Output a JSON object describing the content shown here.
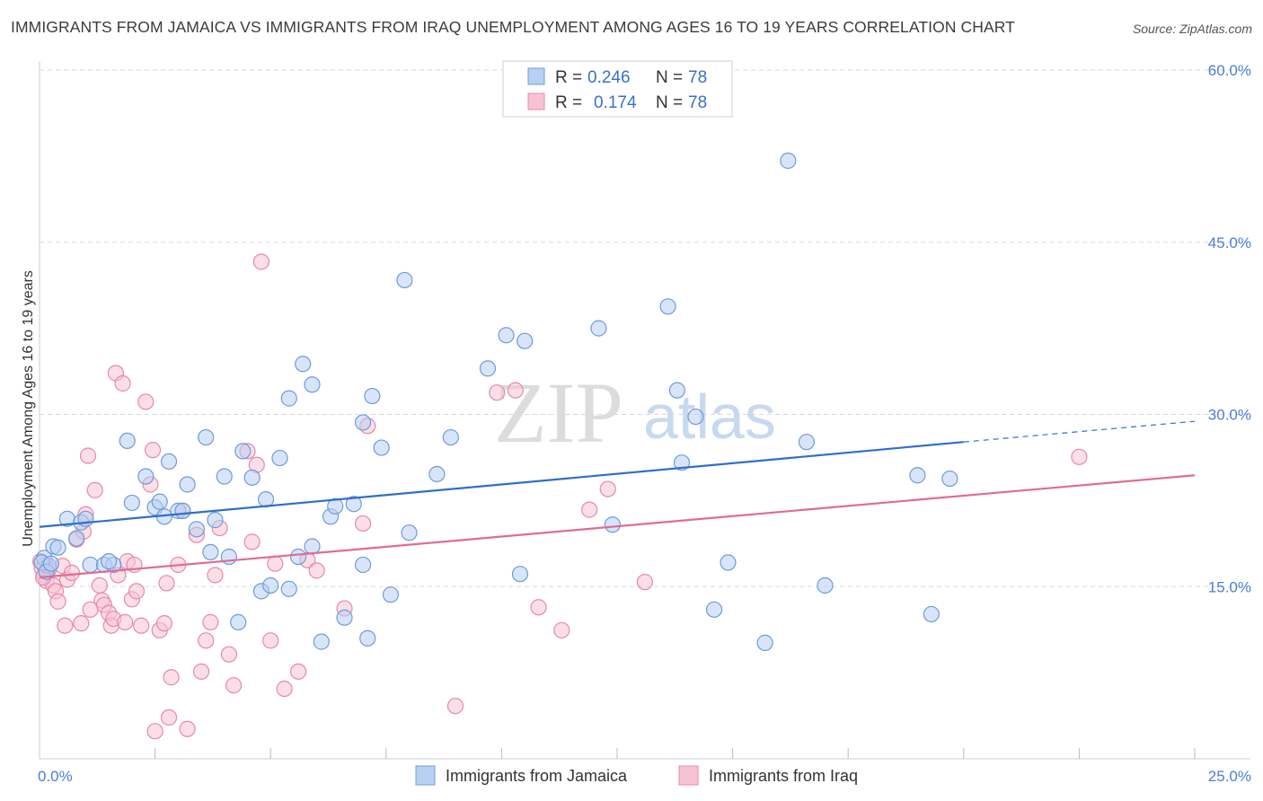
{
  "header": {
    "title": "IMMIGRANTS FROM JAMAICA VS IMMIGRANTS FROM IRAQ UNEMPLOYMENT AMONG AGES 16 TO 19 YEARS CORRELATION CHART",
    "source": "Source: ZipAtlas.com"
  },
  "watermark": {
    "zip": "ZIP",
    "atlas": "atlas"
  },
  "legend": {
    "r_label": "R =",
    "n_label": "N =",
    "series": [
      {
        "r": "0.246",
        "n": "78"
      },
      {
        "r": "0.174",
        "n": "78"
      }
    ]
  },
  "colors": {
    "jamaica_fill": "#b8d0f2",
    "jamaica_stroke": "#6f9bd8",
    "jamaica_line": "#2e6fcc",
    "iraq_fill": "#f7c3d4",
    "iraq_stroke": "#e58aa8",
    "iraq_line": "#e06b96",
    "grid": "#d9d9d9",
    "tick_text": "#4a7fd1"
  },
  "chart_data": {
    "type": "scatter",
    "title": "IMMIGRANTS FROM JAMAICA VS IMMIGRANTS FROM IRAQ UNEMPLOYMENT AMONG AGES 16 TO 19 YEARS CORRELATION CHART",
    "xlabel": "",
    "ylabel": "Unemployment Among Ages 16 to 19 years",
    "xlim": [
      0,
      25
    ],
    "ylim": [
      0,
      60
    ],
    "x_ticks": [
      0,
      25
    ],
    "x_tick_labels": [
      "0.0%",
      "25.0%"
    ],
    "y_ticks": [
      15,
      30,
      45,
      60
    ],
    "y_tick_labels": [
      "15.0%",
      "30.0%",
      "45.0%",
      "60.0%"
    ],
    "legend_position": "top-center",
    "series": [
      {
        "name": "Immigrants from Jamaica",
        "r": 0.246,
        "n": 78,
        "trend": {
          "x0": 0,
          "y0": 20.2,
          "x1": 20,
          "y1": 27.6,
          "dashed_to_x": 25,
          "dashed_to_y": 29.4
        },
        "points": [
          [
            0.1,
            17.5
          ],
          [
            0.2,
            16.8
          ],
          [
            0.3,
            18.5
          ],
          [
            0.4,
            18.4
          ],
          [
            0.6,
            20.9
          ],
          [
            0.8,
            19.2
          ],
          [
            0.9,
            20.6
          ],
          [
            1.0,
            20.9
          ],
          [
            1.1,
            16.9
          ],
          [
            1.4,
            16.9
          ],
          [
            1.6,
            16.9
          ],
          [
            1.9,
            27.7
          ],
          [
            2.0,
            22.3
          ],
          [
            2.3,
            24.6
          ],
          [
            2.5,
            21.9
          ],
          [
            2.6,
            22.4
          ],
          [
            2.7,
            21.1
          ],
          [
            2.8,
            25.9
          ],
          [
            3.0,
            21.6
          ],
          [
            3.1,
            21.6
          ],
          [
            3.2,
            23.9
          ],
          [
            3.4,
            20.0
          ],
          [
            3.6,
            28.0
          ],
          [
            3.7,
            18.0
          ],
          [
            3.8,
            20.8
          ],
          [
            4.0,
            24.6
          ],
          [
            4.1,
            17.6
          ],
          [
            4.3,
            11.9
          ],
          [
            4.4,
            26.8
          ],
          [
            4.6,
            24.5
          ],
          [
            4.8,
            14.6
          ],
          [
            4.9,
            22.6
          ],
          [
            5.0,
            15.1
          ],
          [
            5.2,
            26.2
          ],
          [
            5.4,
            31.4
          ],
          [
            5.4,
            14.8
          ],
          [
            5.6,
            17.6
          ],
          [
            5.7,
            34.4
          ],
          [
            5.9,
            18.5
          ],
          [
            5.9,
            32.6
          ],
          [
            6.1,
            10.2
          ],
          [
            6.3,
            21.1
          ],
          [
            6.4,
            22.0
          ],
          [
            6.6,
            12.3
          ],
          [
            6.8,
            22.2
          ],
          [
            7.0,
            29.3
          ],
          [
            7.0,
            16.9
          ],
          [
            7.1,
            10.5
          ],
          [
            7.2,
            31.6
          ],
          [
            7.4,
            27.1
          ],
          [
            7.6,
            14.3
          ],
          [
            7.9,
            41.7
          ],
          [
            8.0,
            19.7
          ],
          [
            8.6,
            24.8
          ],
          [
            8.9,
            28.0
          ],
          [
            9.7,
            34.0
          ],
          [
            10.1,
            36.9
          ],
          [
            10.4,
            16.1
          ],
          [
            10.5,
            36.4
          ],
          [
            12.1,
            37.5
          ],
          [
            12.4,
            20.4
          ],
          [
            13.6,
            39.4
          ],
          [
            13.8,
            32.1
          ],
          [
            13.9,
            25.8
          ],
          [
            14.2,
            29.8
          ],
          [
            14.6,
            13.0
          ],
          [
            14.9,
            17.1
          ],
          [
            15.7,
            10.1
          ],
          [
            16.2,
            52.1
          ],
          [
            16.6,
            27.6
          ],
          [
            17.0,
            15.1
          ],
          [
            19.0,
            24.7
          ],
          [
            19.3,
            12.6
          ],
          [
            19.7,
            24.4
          ],
          [
            0.05,
            17.1
          ],
          [
            0.15,
            16.3
          ],
          [
            0.25,
            17.0
          ],
          [
            1.5,
            17.2
          ]
        ]
      },
      {
        "name": "Immigrants from Iraq",
        "r": 0.174,
        "n": 78,
        "trend": {
          "x0": 0,
          "y0": 15.8,
          "x1": 25,
          "y1": 24.7
        },
        "points": [
          [
            0.05,
            16.6
          ],
          [
            0.1,
            16.0
          ],
          [
            0.15,
            15.5
          ],
          [
            0.2,
            16.5
          ],
          [
            0.3,
            15.1
          ],
          [
            0.35,
            14.6
          ],
          [
            0.4,
            13.7
          ],
          [
            0.5,
            16.8
          ],
          [
            0.55,
            11.6
          ],
          [
            0.6,
            15.6
          ],
          [
            0.7,
            16.2
          ],
          [
            0.8,
            19.1
          ],
          [
            0.9,
            11.8
          ],
          [
            0.95,
            19.8
          ],
          [
            1.0,
            21.3
          ],
          [
            1.05,
            26.4
          ],
          [
            1.1,
            13.0
          ],
          [
            1.2,
            23.4
          ],
          [
            1.3,
            15.1
          ],
          [
            1.35,
            13.8
          ],
          [
            1.4,
            13.4
          ],
          [
            1.5,
            12.7
          ],
          [
            1.55,
            11.6
          ],
          [
            1.6,
            12.2
          ],
          [
            1.65,
            33.6
          ],
          [
            1.7,
            16.0
          ],
          [
            1.8,
            32.7
          ],
          [
            1.85,
            11.9
          ],
          [
            1.9,
            17.2
          ],
          [
            2.0,
            13.9
          ],
          [
            2.05,
            16.9
          ],
          [
            2.1,
            14.6
          ],
          [
            2.2,
            11.6
          ],
          [
            2.3,
            31.1
          ],
          [
            2.4,
            23.9
          ],
          [
            2.45,
            26.9
          ],
          [
            2.5,
            2.4
          ],
          [
            2.6,
            11.2
          ],
          [
            2.7,
            11.8
          ],
          [
            2.75,
            15.3
          ],
          [
            2.8,
            3.6
          ],
          [
            2.85,
            7.1
          ],
          [
            3.0,
            16.9
          ],
          [
            3.1,
            21.6
          ],
          [
            3.2,
            2.6
          ],
          [
            3.4,
            19.5
          ],
          [
            3.5,
            7.6
          ],
          [
            3.6,
            10.3
          ],
          [
            3.7,
            11.9
          ],
          [
            3.8,
            16.0
          ],
          [
            3.9,
            20.1
          ],
          [
            4.1,
            9.1
          ],
          [
            4.2,
            6.4
          ],
          [
            4.5,
            26.8
          ],
          [
            4.6,
            18.9
          ],
          [
            4.7,
            25.6
          ],
          [
            4.8,
            43.3
          ],
          [
            5.0,
            10.3
          ],
          [
            5.1,
            17.0
          ],
          [
            5.3,
            6.1
          ],
          [
            5.6,
            7.6
          ],
          [
            5.8,
            17.3
          ],
          [
            6.0,
            16.4
          ],
          [
            6.6,
            13.1
          ],
          [
            7.0,
            20.5
          ],
          [
            7.1,
            29.0
          ],
          [
            9.0,
            4.6
          ],
          [
            9.9,
            31.9
          ],
          [
            10.3,
            32.1
          ],
          [
            10.8,
            13.2
          ],
          [
            11.3,
            11.2
          ],
          [
            11.9,
            21.7
          ],
          [
            12.3,
            23.5
          ],
          [
            13.1,
            15.4
          ],
          [
            22.5,
            26.3
          ],
          [
            0.02,
            17.2
          ],
          [
            0.08,
            15.8
          ],
          [
            0.12,
            16.9
          ]
        ]
      }
    ]
  }
}
